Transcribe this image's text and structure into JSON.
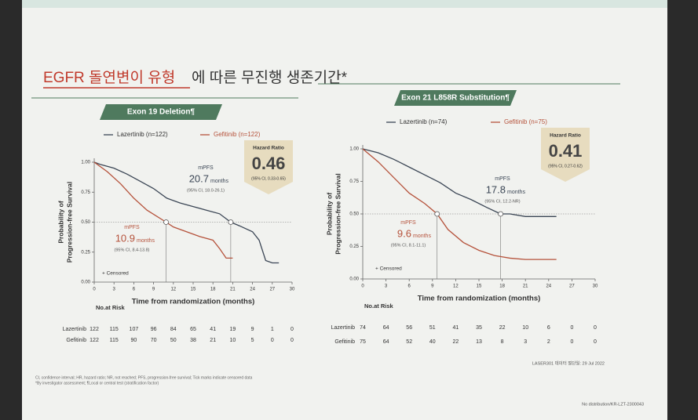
{
  "slide": {
    "title_highlight": "EGFR 돌연변이 유형",
    "title_rest": "에 따른 무진행 생존기간*",
    "footnotes": [
      "CI, confidence interval; HR, hazard ratio; NR, not reached; PFS, progression-free survival; Tick marks indicate censored data",
      "*By investigator assessment; ¶Local or central test (stratification factor)"
    ],
    "cutoff": "LASER301 데이터 절단일: 29 Jul 2022",
    "code": "No distribution/KR-LZT-2300043"
  },
  "chart_data": [
    {
      "type": "line",
      "subtitle": "Exon 19 Deletion¶",
      "xlabel": "Time from randomization (months)",
      "ylabel_lines": [
        "Probability of",
        "Progression-free Survival"
      ],
      "xlim": [
        0,
        30
      ],
      "xticks": [
        0,
        3,
        6,
        9,
        12,
        15,
        18,
        21,
        24,
        27,
        30
      ],
      "ylim": [
        0,
        1
      ],
      "yticks": [
        {
          "value": 0,
          "label": "0.00"
        },
        {
          "value": 0.25,
          "label": "0.25"
        },
        {
          "value": 0.5,
          "label": "0.50"
        },
        {
          "value": 0.75,
          "label": "0.75"
        },
        {
          "value": 1,
          "label": "1.00"
        }
      ],
      "median_line": 0.5,
      "mpfs_label": "mPFS",
      "months_label": "months",
      "censored_label": "+ Censored",
      "hazard_ratio": {
        "title": "Hazard Ratio",
        "value": 0.46,
        "ci": "(95% CI, 0.33-0.65)"
      },
      "series": [
        {
          "name": "Lazertinib (n=122)",
          "color": "#3b4655",
          "median": 20.7,
          "median_ci": "(95% CI, 18.0-26.1)",
          "x": [
            0,
            1,
            3,
            5,
            7,
            9,
            11,
            13,
            15,
            17,
            19,
            20.7,
            22,
            24,
            25,
            26,
            27,
            28
          ],
          "values": [
            1,
            0.98,
            0.95,
            0.9,
            0.84,
            0.78,
            0.7,
            0.66,
            0.63,
            0.6,
            0.57,
            0.5,
            0.47,
            0.42,
            0.35,
            0.18,
            0.16,
            0.16
          ]
        },
        {
          "name": "Gefitinib (n=122)",
          "color": "#b5523b",
          "median": 10.9,
          "median_ci": "(95% CI, 8.4-13.8)",
          "x": [
            0,
            2,
            4,
            6,
            8,
            10.9,
            12,
            14,
            16,
            18,
            19,
            20,
            21
          ],
          "values": [
            1,
            0.92,
            0.82,
            0.7,
            0.6,
            0.5,
            0.46,
            0.42,
            0.38,
            0.35,
            0.28,
            0.2,
            0.2
          ]
        }
      ],
      "risk_table": {
        "title": "No.at Risk",
        "rows": [
          {
            "name": "Lazertinib",
            "values": [
              122,
              115,
              107,
              96,
              84,
              65,
              41,
              19,
              9,
              1,
              0
            ]
          },
          {
            "name": "Gefitinib",
            "values": [
              122,
              115,
              90,
              70,
              50,
              38,
              21,
              10,
              5,
              0,
              0
            ]
          }
        ]
      }
    },
    {
      "type": "line",
      "subtitle": "Exon 21 L858R Substitution¶",
      "xlabel": "Time from randomization (months)",
      "ylabel_lines": [
        "Probability of",
        "Progression-free Survival"
      ],
      "xlim": [
        0,
        30
      ],
      "xticks": [
        0,
        3,
        6,
        9,
        12,
        15,
        18,
        21,
        24,
        27,
        30
      ],
      "ylim": [
        0,
        1
      ],
      "yticks": [
        {
          "value": 0,
          "label": "0.00"
        },
        {
          "value": 0.25,
          "label": "0.25"
        },
        {
          "value": 0.5,
          "label": "0.50"
        },
        {
          "value": 0.75,
          "label": "0.75"
        },
        {
          "value": 1,
          "label": "1.00"
        }
      ],
      "median_line": 0.5,
      "mpfs_label": "mPFS",
      "months_label": "months",
      "censored_label": "+ Censored",
      "hazard_ratio": {
        "title": "Hazard Ratio",
        "value": 0.41,
        "ci": "(95% CI, 0.27-0.62)"
      },
      "series": [
        {
          "name": "Lazertinib (n=74)",
          "color": "#3b4655",
          "median": 17.8,
          "median_ci": "(95% CI, 12.2-NR)",
          "x": [
            0,
            2,
            4,
            6,
            8,
            10,
            12,
            14,
            16,
            17.8,
            19,
            21,
            24,
            25
          ],
          "values": [
            1,
            0.97,
            0.92,
            0.86,
            0.8,
            0.74,
            0.66,
            0.61,
            0.55,
            0.5,
            0.5,
            0.48,
            0.48,
            0.48
          ]
        },
        {
          "name": "Gefitinib (n=75)",
          "color": "#b5523b",
          "median": 9.6,
          "median_ci": "(95% CI, 8.1-11.1)",
          "x": [
            0,
            2,
            4,
            6,
            8,
            9.6,
            11,
            13,
            15,
            17,
            19,
            21,
            25
          ],
          "values": [
            1,
            0.9,
            0.78,
            0.66,
            0.58,
            0.5,
            0.38,
            0.28,
            0.22,
            0.18,
            0.16,
            0.15,
            0.15
          ]
        }
      ],
      "risk_table": {
        "title": "No.at Risk",
        "rows": [
          {
            "name": "Lazertinib",
            "values": [
              74,
              64,
              56,
              51,
              41,
              35,
              22,
              10,
              6,
              0,
              0
            ]
          },
          {
            "name": "Gefitinib",
            "values": [
              75,
              64,
              52,
              40,
              22,
              13,
              8,
              3,
              2,
              0,
              0
            ]
          }
        ]
      }
    }
  ]
}
